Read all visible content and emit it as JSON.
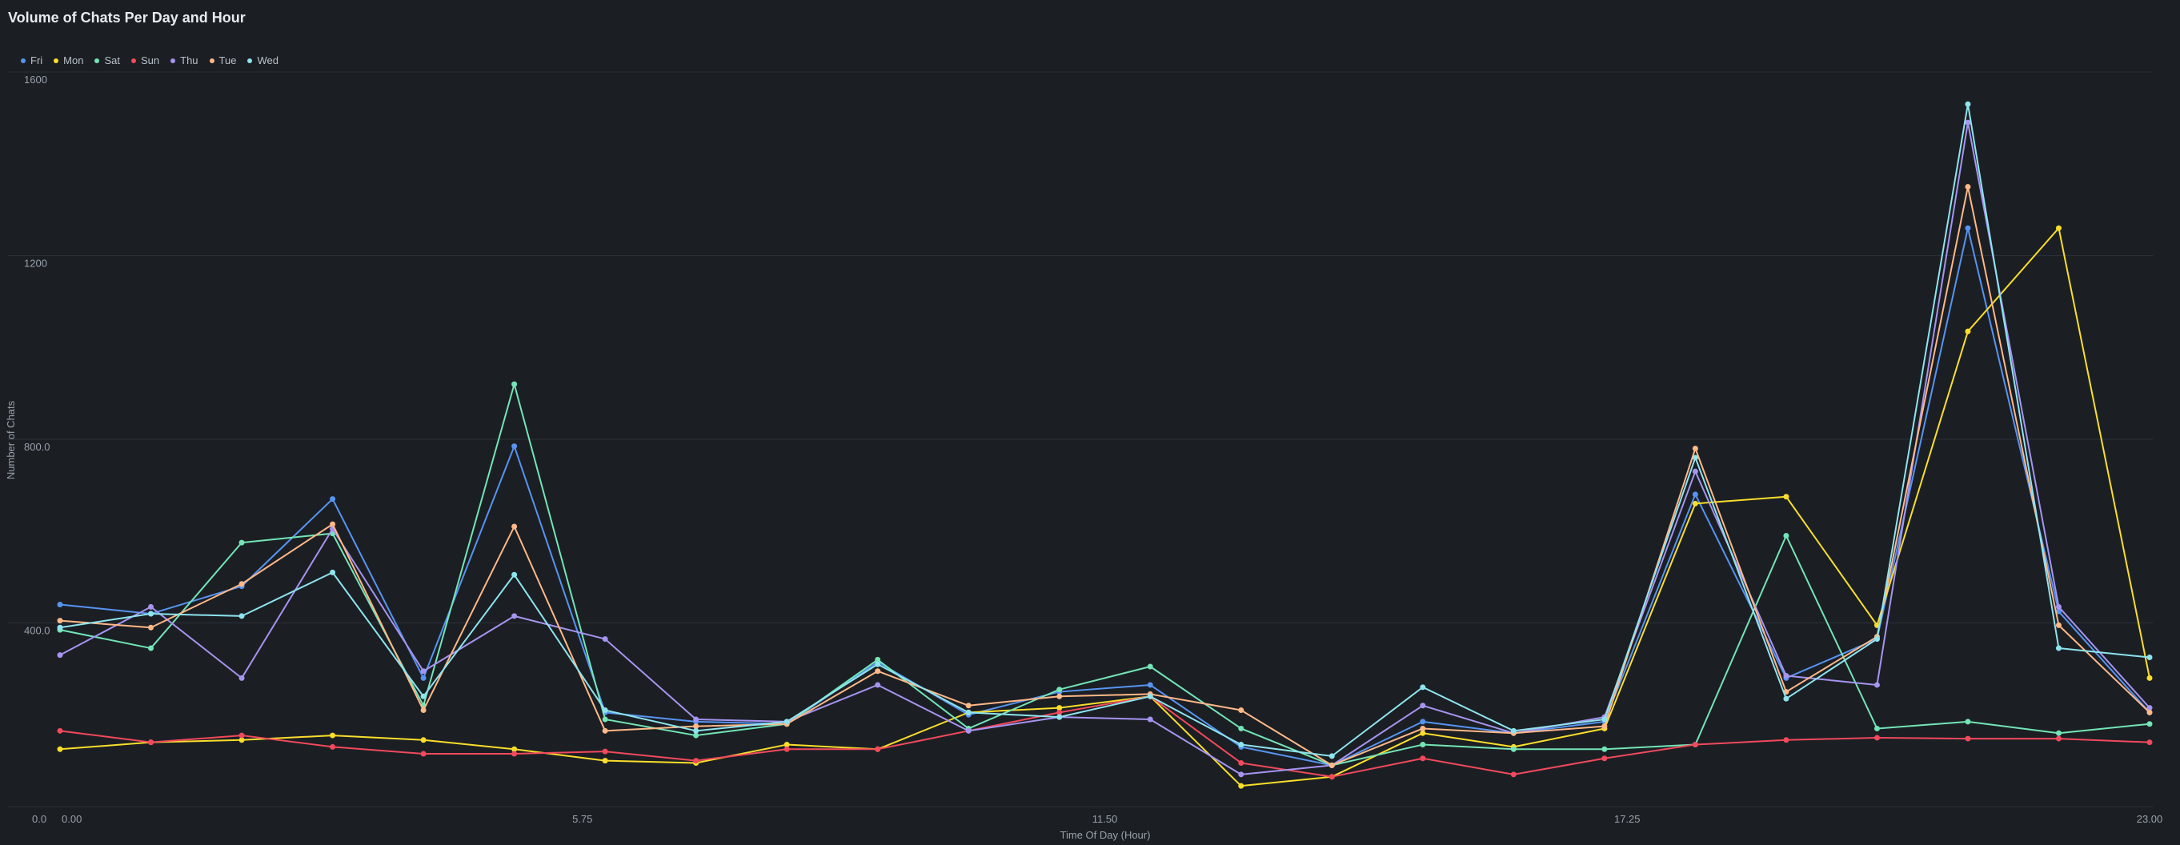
{
  "title": "Volume of Chats Per Day and Hour",
  "chart_data": {
    "type": "line",
    "title": "Volume of Chats Per Day and Hour",
    "xlabel": "Time Of Day (Hour)",
    "ylabel": "Number of Chats",
    "x": [
      0,
      1,
      2,
      3,
      4,
      5,
      6,
      7,
      8,
      9,
      10,
      11,
      12,
      13,
      14,
      15,
      16,
      17,
      18,
      19,
      20,
      21,
      22,
      23
    ],
    "xlim": [
      0,
      23
    ],
    "ylim": [
      0,
      1600
    ],
    "x_origin_label": "0.0",
    "xticks": [
      {
        "value": 0,
        "label": "0.00"
      },
      {
        "value": 5.75,
        "label": "5.75"
      },
      {
        "value": 11.5,
        "label": "11.50"
      },
      {
        "value": 17.25,
        "label": "17.25"
      },
      {
        "value": 23,
        "label": "23.00"
      }
    ],
    "yticks": [
      {
        "value": 400,
        "label": "400.0"
      },
      {
        "value": 800,
        "label": "800.0"
      },
      {
        "value": 1200,
        "label": "1200"
      },
      {
        "value": 1600,
        "label": "1600"
      }
    ],
    "grid": true,
    "legend_position": "top-left",
    "series": [
      {
        "name": "Fri",
        "color": "#5794f2",
        "values": [
          440,
          420,
          480,
          670,
          280,
          785,
          205,
          185,
          180,
          315,
          200,
          250,
          265,
          130,
          90,
          185,
          160,
          185,
          680,
          280,
          365,
          1260,
          425,
          205
        ]
      },
      {
        "name": "Mon",
        "color": "#fade2a",
        "values": [
          125,
          140,
          145,
          155,
          145,
          125,
          100,
          95,
          135,
          125,
          205,
          215,
          240,
          45,
          65,
          160,
          130,
          170,
          660,
          675,
          395,
          1035,
          1260,
          280
        ]
      },
      {
        "name": "Sat",
        "color": "#73e5b6",
        "values": [
          385,
          345,
          575,
          595,
          220,
          920,
          190,
          155,
          180,
          320,
          170,
          255,
          305,
          170,
          90,
          135,
          125,
          125,
          135,
          590,
          170,
          185,
          160,
          180
        ]
      },
      {
        "name": "Sun",
        "color": "#f2495c",
        "values": [
          165,
          140,
          155,
          130,
          115,
          115,
          120,
          100,
          125,
          125,
          165,
          205,
          240,
          95,
          65,
          105,
          70,
          105,
          135,
          145,
          150,
          148,
          148,
          140
        ]
      },
      {
        "name": "Thu",
        "color": "#a694f0",
        "values": [
          330,
          435,
          280,
          605,
          295,
          415,
          365,
          190,
          185,
          265,
          165,
          195,
          190,
          70,
          90,
          220,
          160,
          195,
          730,
          285,
          265,
          1490,
          435,
          215
        ]
      },
      {
        "name": "Tue",
        "color": "#ffb887",
        "values": [
          405,
          390,
          485,
          615,
          210,
          610,
          165,
          175,
          180,
          295,
          220,
          240,
          245,
          210,
          90,
          170,
          160,
          175,
          780,
          250,
          370,
          1350,
          395,
          205
        ]
      },
      {
        "name": "Wed",
        "color": "#8ee4ee",
        "values": [
          390,
          420,
          415,
          510,
          240,
          505,
          210,
          165,
          185,
          310,
          205,
          195,
          240,
          135,
          110,
          260,
          165,
          190,
          760,
          235,
          365,
          1530,
          345,
          325
        ]
      }
    ]
  }
}
